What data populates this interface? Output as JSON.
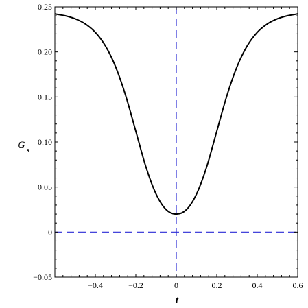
{
  "chart_data": {
    "type": "line",
    "xlabel": "t",
    "ylabel": {
      "main": "G",
      "sub": "s"
    },
    "xlim": [
      -0.6,
      0.6
    ],
    "ylim": [
      -0.05,
      0.25
    ],
    "xticks": [
      -0.4,
      -0.2,
      0,
      0.2,
      0.4,
      0.6
    ],
    "xtick_labels": [
      "−0.4",
      "−0.2",
      "0",
      "0.2",
      "0.4",
      "0.6"
    ],
    "yticks": [
      -0.05,
      0,
      0.05,
      0.1,
      0.15,
      0.2,
      0.25
    ],
    "ytick_labels": [
      "−0.05",
      "0",
      "0.05",
      "0.10",
      "0.15",
      "0.20",
      "0.25"
    ],
    "grid": false,
    "reference_lines": [
      {
        "orientation": "vertical",
        "value": 0,
        "style": "dashed",
        "color": "#2b2bd6"
      },
      {
        "orientation": "horizontal",
        "value": 0,
        "style": "dashed",
        "color": "#2b2bd6"
      }
    ],
    "series": [
      {
        "color": "#000000",
        "x": [
          -0.6,
          -0.55,
          -0.5,
          -0.45,
          -0.4,
          -0.35,
          -0.3,
          -0.25,
          -0.2,
          -0.15,
          -0.1,
          -0.05,
          0,
          0.05,
          0.1,
          0.15,
          0.2,
          0.25,
          0.3,
          0.35,
          0.4,
          0.45,
          0.5,
          0.55,
          0.6
        ],
        "y": [
          0.2422,
          0.2402,
          0.2368,
          0.2311,
          0.2217,
          0.2066,
          0.1836,
          0.1514,
          0.1119,
          0.0723,
          0.0423,
          0.0249,
          0.02,
          0.0249,
          0.0423,
          0.0723,
          0.1119,
          0.1514,
          0.1836,
          0.2066,
          0.2217,
          0.2311,
          0.2368,
          0.2402,
          0.2422
        ]
      }
    ]
  }
}
